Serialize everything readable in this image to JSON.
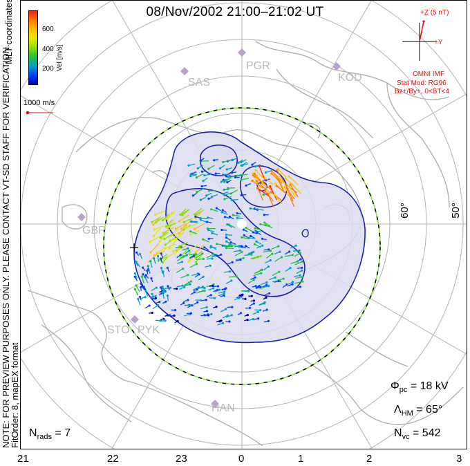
{
  "title": "08/Nov/2002 21:00–21:02 UT",
  "side_note": {
    "line1": "NOTE: FOR PREVIEW PURPOSES ONLY. PLEASE CONTACT VT-SD STAFF FOR VERIFICATION.",
    "line2": "FitOrder: 8, mapEX format"
  },
  "coord_label": "MLT coordinates",
  "colorbar": {
    "label": "Vel [m/s]",
    "ticks": [
      "600",
      "400",
      "200"
    ],
    "colors": [
      "#ff2000",
      "#ff7a00",
      "#ffc000",
      "#e6e600",
      "#8be000",
      "#20c040",
      "#00a0c0",
      "#0040ff",
      "#0000b0"
    ]
  },
  "scale_vector": {
    "label": "1000 m/s",
    "color": "#e01010"
  },
  "imf": {
    "axis_z": "+Z (5 nT)",
    "axis_y": "+Y",
    "source": "OMNI IMF",
    "model": "Stat Mod: RG96",
    "condition": "Bz+/By+, 0<BT<4"
  },
  "mlt_ticks": [
    "21",
    "22",
    "23",
    "0",
    "1",
    "2",
    "3"
  ],
  "lat_labels": [
    "60°",
    "50°"
  ],
  "stations": [
    "PGR",
    "SAS",
    "KOD",
    "GBR",
    "STO",
    "PYK",
    "HAN"
  ],
  "stats": {
    "phi_pc": {
      "symbol": "Φ",
      "sub": "pc",
      "value": "= 18 kV"
    },
    "lambda_hm": {
      "symbol": "Λ",
      "sub": "HM",
      "value": "= 65°"
    },
    "n_vc": {
      "symbol": "N",
      "sub": "vc",
      "value": "= 542"
    },
    "n_rads": {
      "symbol": "N",
      "sub": "rads",
      "value": "= 7"
    }
  },
  "colors": {
    "contour": "#1a22b0",
    "shade": "#dcdcf0",
    "boundary_dash": "#90e040",
    "grid": "#b8b8b8",
    "coast": "#b0b0b0"
  }
}
